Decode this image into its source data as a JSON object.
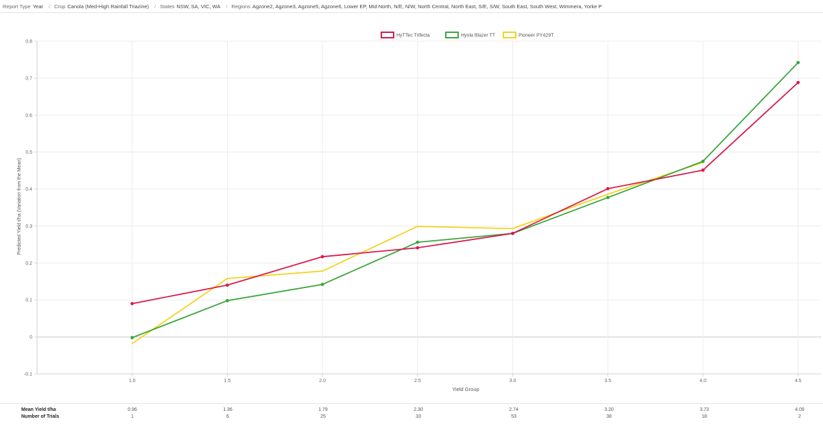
{
  "breadcrumb": [
    {
      "key": "Report Type",
      "value": "Year"
    },
    {
      "key": "Crop",
      "value": "Canola (Med-High Rainfall Triazine)"
    },
    {
      "key": "States",
      "value": "NSW, SA, VIC, WA"
    },
    {
      "key": "Regions",
      "value": "Agzone2, Agzone3, Agzone5, Agzone6, Lower EP, Mid North, N/E, N/W, North Central, North East, S/E, S/W, South East, South West, Wimmera, Yorke P"
    }
  ],
  "chart_data": {
    "type": "line",
    "xlabel": "Yield Group",
    "ylabel": "Predicted Yield t/ha (Variation from the Mean)",
    "x": [
      1.0,
      1.5,
      2.0,
      2.5,
      3.0,
      3.5,
      4.0,
      4.5
    ],
    "x_tick_labels": [
      "1.0",
      "1.5",
      "2.0",
      "2.5",
      "3.0",
      "3.5",
      "4.0",
      "4.5"
    ],
    "xlim": [
      0.5,
      4.62
    ],
    "ylim": [
      -0.1,
      0.8
    ],
    "y_ticks": [
      -0.1,
      0,
      0.1,
      0.2,
      0.3,
      0.4,
      0.5,
      0.6,
      0.7,
      0.8
    ],
    "y_tick_labels": [
      "-0.1",
      "0",
      "0.1",
      "0.2",
      "0.3",
      "0.4",
      "0.5",
      "0.6",
      "0.7",
      "0.8"
    ],
    "grid": true,
    "legend_position": "top-center",
    "series": [
      {
        "name": "HyTTec Trifecta",
        "color": "#d81b4b",
        "points": true,
        "values": [
          0.09,
          0.14,
          0.217,
          0.241,
          0.28,
          0.401,
          0.451,
          0.688
        ]
      },
      {
        "name": "Hyola Blazer TT",
        "color": "#3aa53a",
        "points": true,
        "values": [
          -0.002,
          0.098,
          0.142,
          0.256,
          0.28,
          0.377,
          0.475,
          0.742
        ]
      },
      {
        "name": "Pioneer PY429T",
        "color": "#f5d31c",
        "points": false,
        "values": [
          -0.018,
          0.158,
          0.178,
          0.299,
          0.293,
          0.386,
          0.472,
          null
        ]
      }
    ]
  },
  "footer": {
    "rows": [
      {
        "label": "Mean Yield t/ha",
        "values": [
          "0.96",
          "1.36",
          "1.79",
          "2.30",
          "2.74",
          "3.20",
          "3.73",
          "4.09"
        ]
      },
      {
        "label": "Number of Trials",
        "values": [
          "1",
          "6",
          "25",
          "33",
          "53",
          "38",
          "18",
          "2"
        ]
      }
    ]
  }
}
